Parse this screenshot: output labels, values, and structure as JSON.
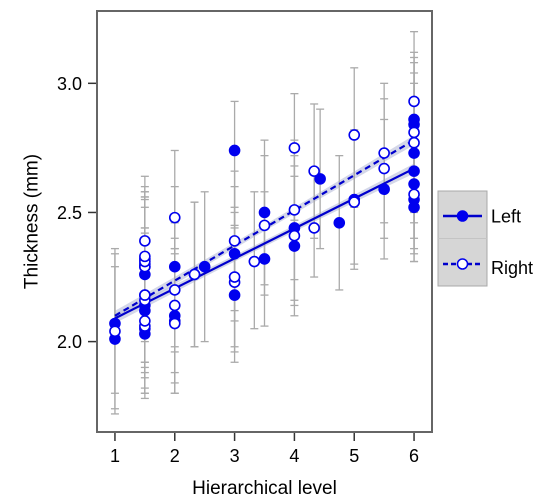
{
  "chart_data": {
    "type": "scatter",
    "title": "",
    "xlabel": "Hierarchical level",
    "ylabel": "Thickness (mm)",
    "xlim": [
      0.7,
      6.3
    ],
    "ylim": [
      1.65,
      3.28
    ],
    "xticks": [
      1,
      2,
      3,
      4,
      5,
      6
    ],
    "yticks": [
      2.0,
      2.5,
      3.0
    ],
    "ytick_labels": [
      "2.0",
      "2.5",
      "3.0"
    ],
    "grid": false,
    "legend": "right",
    "colors": {
      "points": "#0000ee",
      "fit": "#0000cc",
      "band": "#b8bdd8",
      "errorbar": "#aaaaaa",
      "frame": "#666666",
      "legend_box": "#d6d6d6"
    },
    "series": [
      {
        "name": "Left",
        "marker": "filled-circle",
        "line_style": "solid",
        "fit": {
          "x": [
            1,
            6
          ],
          "y": [
            2.09,
            2.67
          ]
        },
        "points": [
          {
            "x": 1,
            "y": 2.01,
            "lo": 1.74,
            "hi": 2.29
          },
          {
            "x": 1,
            "y": 2.07,
            "lo": 1.8,
            "hi": 2.34
          },
          {
            "x": 1.5,
            "y": 2.03,
            "lo": 1.78,
            "hi": 2.29
          },
          {
            "x": 1.5,
            "y": 2.05,
            "lo": 1.8,
            "hi": 2.31
          },
          {
            "x": 1.5,
            "y": 2.12,
            "lo": 1.86,
            "hi": 2.38
          },
          {
            "x": 1.5,
            "y": 2.14,
            "lo": 1.88,
            "hi": 2.4
          },
          {
            "x": 1.5,
            "y": 2.18,
            "lo": 1.92,
            "hi": 2.44
          },
          {
            "x": 1.5,
            "y": 2.26,
            "lo": 2.0,
            "hi": 2.52
          },
          {
            "x": 1.5,
            "y": 2.29,
            "lo": 2.03,
            "hi": 2.55
          },
          {
            "x": 1.5,
            "y": 2.3,
            "lo": 2.04,
            "hi": 2.56
          },
          {
            "x": 1.5,
            "y": 2.32,
            "lo": 2.06,
            "hi": 2.58
          },
          {
            "x": 2,
            "y": 2.08,
            "lo": 1.8,
            "hi": 2.36
          },
          {
            "x": 2,
            "y": 2.1,
            "lo": 1.84,
            "hi": 2.36
          },
          {
            "x": 2,
            "y": 2.29,
            "lo": 1.98,
            "hi": 2.6
          },
          {
            "x": 2.33,
            "y": 2.26,
            "lo": 1.98,
            "hi": 2.54
          },
          {
            "x": 2.5,
            "y": 2.29,
            "lo": 2.0,
            "hi": 2.58
          },
          {
            "x": 3,
            "y": 2.18,
            "lo": 1.92,
            "hi": 2.44
          },
          {
            "x": 3,
            "y": 2.34,
            "lo": 2.08,
            "hi": 2.6
          },
          {
            "x": 3,
            "y": 2.74,
            "lo": 2.45,
            "hi": 2.93
          },
          {
            "x": 3.5,
            "y": 2.32,
            "lo": 2.06,
            "hi": 2.58
          },
          {
            "x": 3.5,
            "y": 2.5,
            "lo": 2.22,
            "hi": 2.78
          },
          {
            "x": 4,
            "y": 2.37,
            "lo": 2.1,
            "hi": 2.64
          },
          {
            "x": 4,
            "y": 2.44,
            "lo": 2.16,
            "hi": 2.72
          },
          {
            "x": 4.43,
            "y": 2.63,
            "lo": 2.36,
            "hi": 2.9
          },
          {
            "x": 4.75,
            "y": 2.46,
            "lo": 2.2,
            "hi": 2.72
          },
          {
            "x": 5,
            "y": 2.55,
            "lo": 2.28,
            "hi": 2.82
          },
          {
            "x": 5.5,
            "y": 2.59,
            "lo": 2.32,
            "hi": 2.86
          },
          {
            "x": 6,
            "y": 2.52,
            "lo": 2.31,
            "hi": 2.76
          },
          {
            "x": 6,
            "y": 2.55,
            "lo": 2.34,
            "hi": 2.8
          },
          {
            "x": 6,
            "y": 2.61,
            "lo": 2.36,
            "hi": 2.86
          },
          {
            "x": 6,
            "y": 2.66,
            "lo": 2.4,
            "hi": 2.92
          },
          {
            "x": 6,
            "y": 2.73,
            "lo": 2.46,
            "hi": 3.0
          },
          {
            "x": 6,
            "y": 2.84,
            "lo": 2.58,
            "hi": 3.1
          },
          {
            "x": 6,
            "y": 2.86,
            "lo": 2.6,
            "hi": 3.12
          }
        ]
      },
      {
        "name": "Right",
        "marker": "open-circle",
        "line_style": "dashed",
        "fit": {
          "x": [
            1,
            6
          ],
          "y": [
            2.1,
            2.78
          ]
        },
        "points": [
          {
            "x": 1,
            "y": 2.04,
            "lo": 1.72,
            "hi": 2.36
          },
          {
            "x": 1.5,
            "y": 2.06,
            "lo": 1.8,
            "hi": 2.32
          },
          {
            "x": 1.5,
            "y": 2.08,
            "lo": 1.82,
            "hi": 2.34
          },
          {
            "x": 1.5,
            "y": 2.16,
            "lo": 1.9,
            "hi": 2.42
          },
          {
            "x": 1.5,
            "y": 2.18,
            "lo": 1.92,
            "hi": 2.44
          },
          {
            "x": 1.5,
            "y": 2.29,
            "lo": 2.02,
            "hi": 2.56
          },
          {
            "x": 1.5,
            "y": 2.31,
            "lo": 2.04,
            "hi": 2.58
          },
          {
            "x": 1.5,
            "y": 2.33,
            "lo": 2.06,
            "hi": 2.6
          },
          {
            "x": 1.5,
            "y": 2.39,
            "lo": 2.13,
            "hi": 2.64
          },
          {
            "x": 2,
            "y": 2.07,
            "lo": 1.8,
            "hi": 2.34
          },
          {
            "x": 2,
            "y": 2.14,
            "lo": 1.88,
            "hi": 2.4
          },
          {
            "x": 2,
            "y": 2.2,
            "lo": 1.96,
            "hi": 2.46
          },
          {
            "x": 2,
            "y": 2.48,
            "lo": 2.21,
            "hi": 2.74
          },
          {
            "x": 2.33,
            "y": 2.26,
            "lo": 1.98,
            "hi": 2.54
          },
          {
            "x": 3,
            "y": 2.23,
            "lo": 1.96,
            "hi": 2.5
          },
          {
            "x": 3,
            "y": 2.25,
            "lo": 1.98,
            "hi": 2.52
          },
          {
            "x": 3,
            "y": 2.39,
            "lo": 2.12,
            "hi": 2.66
          },
          {
            "x": 3.33,
            "y": 2.31,
            "lo": 2.05,
            "hi": 2.58
          },
          {
            "x": 3.5,
            "y": 2.45,
            "lo": 2.18,
            "hi": 2.72
          },
          {
            "x": 4,
            "y": 2.41,
            "lo": 2.14,
            "hi": 2.68
          },
          {
            "x": 4,
            "y": 2.51,
            "lo": 2.24,
            "hi": 2.78
          },
          {
            "x": 4,
            "y": 2.75,
            "lo": 2.47,
            "hi": 2.96
          },
          {
            "x": 4.33,
            "y": 2.44,
            "lo": 2.25,
            "hi": 2.66
          },
          {
            "x": 4.33,
            "y": 2.66,
            "lo": 2.4,
            "hi": 2.92
          },
          {
            "x": 5,
            "y": 2.54,
            "lo": 2.3,
            "hi": 2.8
          },
          {
            "x": 5,
            "y": 2.8,
            "lo": 2.52,
            "hi": 3.06
          },
          {
            "x": 5.5,
            "y": 2.67,
            "lo": 2.4,
            "hi": 2.94
          },
          {
            "x": 5.5,
            "y": 2.73,
            "lo": 2.46,
            "hi": 3.0
          },
          {
            "x": 6,
            "y": 2.57,
            "lo": 2.31,
            "hi": 2.84
          },
          {
            "x": 6,
            "y": 2.77,
            "lo": 2.5,
            "hi": 3.04
          },
          {
            "x": 6,
            "y": 2.81,
            "lo": 2.54,
            "hi": 3.08
          },
          {
            "x": 6,
            "y": 2.93,
            "lo": 2.66,
            "hi": 3.2
          }
        ]
      }
    ]
  }
}
